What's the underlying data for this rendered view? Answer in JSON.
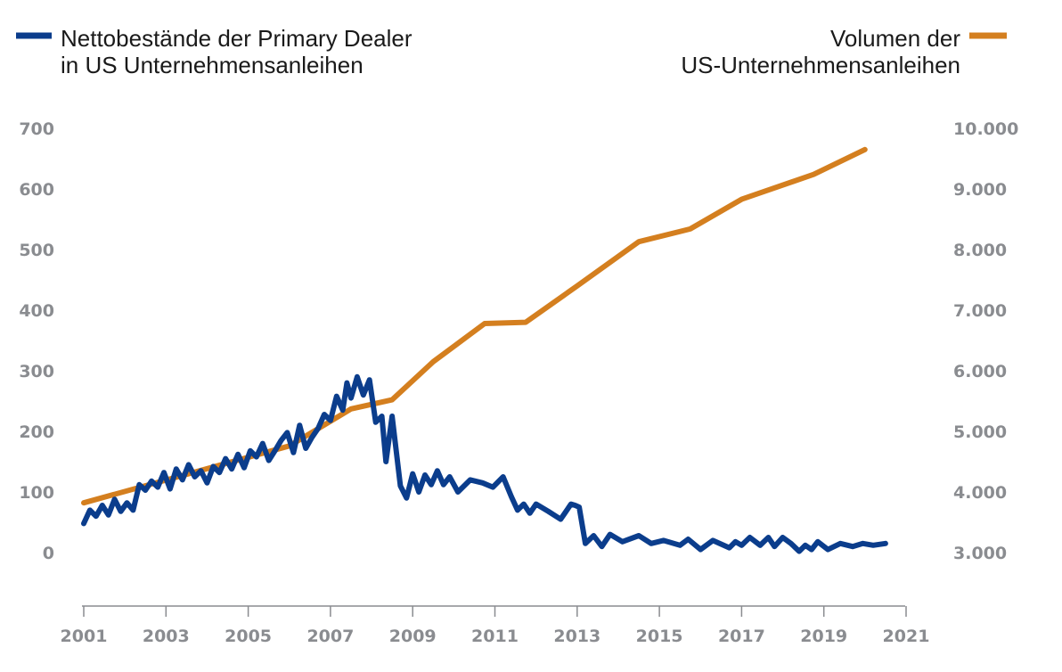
{
  "chart_data": {
    "type": "line",
    "title": "",
    "xlabel": "",
    "ylabel_left": "",
    "ylabel_right": "",
    "xlim": [
      2001,
      2021
    ],
    "ylim_left": [
      0,
      700
    ],
    "ylim_right": [
      3000,
      10000
    ],
    "x_ticks": [
      "2001",
      "2003",
      "2005",
      "2007",
      "2009",
      "2011",
      "2013",
      "2015",
      "2017",
      "2019",
      "2021"
    ],
    "y_ticks_left": [
      "0",
      "100",
      "200",
      "300",
      "400",
      "500",
      "600",
      "700"
    ],
    "y_ticks_right": [
      "3.000",
      "4.000",
      "5.000",
      "6.000",
      "7.000",
      "8.000",
      "9.000",
      "10.000"
    ],
    "grid": false,
    "series": [
      {
        "name": "Nettobestände der Primary Dealer in US Unternehmensanleihen",
        "legend_lines": [
          "Nettobestände der Primary Dealer",
          "in US Unternehmensanleihen"
        ],
        "axis": "left",
        "color": "#0b3d8c",
        "x": [
          2001.0,
          2001.15,
          2001.3,
          2001.45,
          2001.6,
          2001.75,
          2001.9,
          2002.05,
          2002.2,
          2002.35,
          2002.5,
          2002.65,
          2002.8,
          2002.95,
          2003.1,
          2003.25,
          2003.4,
          2003.55,
          2003.7,
          2003.85,
          2004.0,
          2004.15,
          2004.3,
          2004.45,
          2004.6,
          2004.75,
          2004.9,
          2005.05,
          2005.2,
          2005.35,
          2005.5,
          2005.65,
          2005.8,
          2005.95,
          2006.1,
          2006.25,
          2006.4,
          2006.55,
          2006.7,
          2006.85,
          2007.0,
          2007.15,
          2007.3,
          2007.4,
          2007.5,
          2007.65,
          2007.8,
          2007.95,
          2008.1,
          2008.25,
          2008.35,
          2008.5,
          2008.7,
          2008.85,
          2009.0,
          2009.15,
          2009.3,
          2009.45,
          2009.6,
          2009.75,
          2009.9,
          2010.1,
          2010.4,
          2010.7,
          2010.95,
          2011.2,
          2011.4,
          2011.55,
          2011.7,
          2011.85,
          2012.0,
          2012.3,
          2012.6,
          2012.85,
          2012.95,
          2013.05,
          2013.2,
          2013.4,
          2013.6,
          2013.8,
          2014.1,
          2014.5,
          2014.8,
          2015.1,
          2015.5,
          2015.7,
          2016.0,
          2016.3,
          2016.7,
          2016.85,
          2017.0,
          2017.2,
          2017.45,
          2017.65,
          2017.8,
          2018.0,
          2018.2,
          2018.4,
          2018.55,
          2018.7,
          2018.85,
          2019.1,
          2019.4,
          2019.7,
          2019.95,
          2020.2,
          2020.5
        ],
        "y": [
          48,
          70,
          60,
          78,
          62,
          88,
          68,
          82,
          70,
          112,
          103,
          118,
          108,
          132,
          105,
          138,
          120,
          145,
          125,
          135,
          115,
          142,
          132,
          155,
          138,
          162,
          140,
          168,
          158,
          180,
          152,
          168,
          185,
          198,
          165,
          210,
          172,
          190,
          205,
          228,
          218,
          258,
          235,
          280,
          255,
          290,
          260,
          285,
          215,
          225,
          150,
          225,
          110,
          90,
          130,
          100,
          128,
          112,
          135,
          112,
          125,
          100,
          120,
          115,
          108,
          125,
          92,
          70,
          80,
          65,
          80,
          68,
          55,
          80,
          78,
          75,
          15,
          28,
          10,
          30,
          18,
          28,
          15,
          20,
          12,
          22,
          5,
          20,
          8,
          18,
          12,
          25,
          12,
          25,
          10,
          25,
          15,
          2,
          12,
          5,
          18,
          5,
          15,
          10,
          15,
          12,
          15
        ]
      },
      {
        "name": "Volumen der US-Unternehmensanleihen",
        "legend_lines": [
          "Volumen der",
          "US-Unternehmensanleihen"
        ],
        "axis": "right",
        "color": "#d47f1f",
        "x": [
          2001.0,
          2006.0,
          2007.5,
          2008.5,
          2009.5,
          2010.75,
          2011.75,
          2013.0,
          2014.5,
          2015.75,
          2017.0,
          2018.75,
          2020.0
        ],
        "y": [
          3820,
          4760,
          5370,
          5520,
          6150,
          6780,
          6800,
          7400,
          8130,
          8340,
          8830,
          9240,
          9650
        ]
      }
    ]
  }
}
